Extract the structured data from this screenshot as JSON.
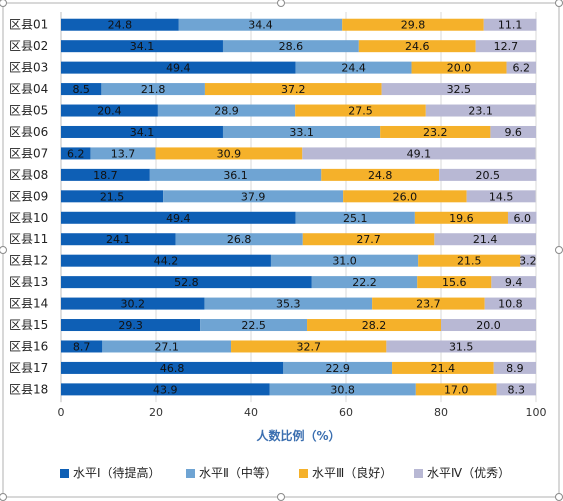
{
  "chart_data": {
    "type": "bar",
    "orientation": "horizontal",
    "stacked": true,
    "categories": [
      "区县01",
      "区县02",
      "区县03",
      "区县04",
      "区县05",
      "区县06",
      "区县07",
      "区县08",
      "区县09",
      "区县10",
      "区县11",
      "区县12",
      "区县13",
      "区县14",
      "区县15",
      "区县16",
      "区县17",
      "区县18"
    ],
    "series": [
      {
        "name": "水平Ⅰ（待提高）",
        "color": "#0e5fb5",
        "values": [
          24.8,
          34.1,
          49.4,
          8.5,
          20.4,
          34.1,
          6.2,
          18.7,
          21.5,
          49.4,
          24.1,
          44.2,
          52.8,
          30.2,
          29.3,
          8.7,
          46.8,
          43.9
        ]
      },
      {
        "name": "水平Ⅱ（中等）",
        "color": "#6fa4d3",
        "values": [
          34.4,
          28.6,
          24.4,
          21.8,
          28.9,
          33.1,
          13.7,
          36.1,
          37.9,
          25.1,
          26.8,
          31.0,
          22.2,
          35.3,
          22.5,
          27.1,
          22.9,
          30.8
        ]
      },
      {
        "name": "水平Ⅲ（良好）",
        "color": "#f5b12a",
        "values": [
          29.8,
          24.6,
          20.0,
          37.2,
          27.5,
          23.2,
          30.9,
          24.8,
          26.0,
          19.6,
          27.7,
          21.5,
          15.6,
          23.7,
          28.2,
          32.7,
          21.4,
          17.0
        ]
      },
      {
        "name": "水平Ⅳ（优秀）",
        "color": "#b8b8d4",
        "values": [
          11.1,
          12.7,
          6.2,
          32.5,
          23.1,
          9.6,
          49.1,
          20.5,
          14.5,
          6.0,
          21.4,
          3.2,
          9.4,
          10.8,
          20.0,
          31.5,
          8.9,
          8.3
        ]
      }
    ],
    "xlabel": "人数比例（%）",
    "ylabel": "",
    "xlim": [
      0,
      100
    ],
    "xticks": [
      "0",
      "20",
      "40",
      "60",
      "80",
      "100"
    ],
    "grid": true,
    "legend_position": "bottom"
  }
}
